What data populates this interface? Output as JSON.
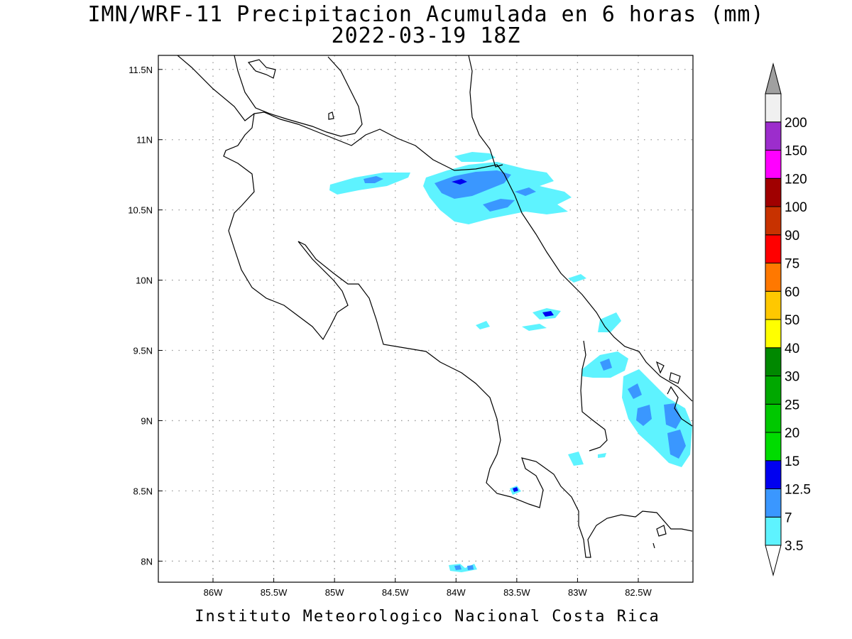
{
  "title": {
    "line1": "IMN/WRF-11 Precipitacion Acumulada en 6 horas (mm)",
    "line2": "2022-03-19 18Z"
  },
  "footer": "Instituto Meteorologico Nacional Costa Rica",
  "map": {
    "lon_range": [
      -86.45,
      -82.05
    ],
    "lat_range": [
      7.85,
      11.6
    ],
    "lon_ticks": [
      "86W",
      "85.5W",
      "85W",
      "84.5W",
      "84W",
      "83.5W",
      "83W",
      "82.5W"
    ],
    "lat_ticks": [
      "11.5N",
      "11N",
      "10.5N",
      "10N",
      "9.5N",
      "9N",
      "8.5N",
      "8N"
    ],
    "grid": "dotted"
  },
  "colorbar": {
    "levels": [
      "3.5",
      "7",
      "12.5",
      "15",
      "20",
      "25",
      "30",
      "40",
      "50",
      "60",
      "75",
      "90",
      "100",
      "120",
      "150",
      "200"
    ],
    "colors": [
      "#5ef3ff",
      "#3a97ff",
      "#0000f0",
      "#00dc00",
      "#00c800",
      "#00a800",
      "#008800",
      "#ffff00",
      "#ffc800",
      "#ff7800",
      "#ff0000",
      "#c83200",
      "#a00000",
      "#ff00ff",
      "#9c2dcc",
      "#f0f0f0"
    ],
    "extend_high_color": "#a0a0a0",
    "extend_low_color": "#ffffff"
  }
}
